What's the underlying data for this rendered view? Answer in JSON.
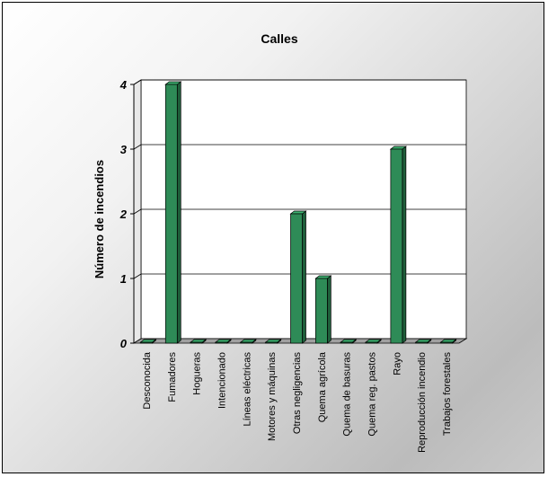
{
  "chart_data": {
    "type": "bar",
    "title": "Calles",
    "xlabel": "",
    "ylabel": "Número de incendios",
    "categories": [
      "Desconocida",
      "Fumadores",
      "Hogueras",
      "Intencionado",
      "Líneas eléctricas",
      "Motores y máquinas",
      "Otras negligencias",
      "Quema agrícola",
      "Quema de basuras",
      "Quema reg. pastos",
      "Rayo",
      "Reproducción incendio",
      "Trabajos forestales"
    ],
    "values": [
      0,
      4,
      0,
      0,
      0,
      0,
      2,
      1,
      0,
      0,
      3,
      0,
      0
    ],
    "ylim": [
      0,
      4
    ],
    "yticks": [
      "0",
      "1",
      "2",
      "3",
      "4"
    ],
    "grid": true,
    "legend": "none",
    "colors": {
      "bar_front": "#2e8b57",
      "bar_top": "#3cb371",
      "bar_side": "#1f5f3b",
      "bar_outline": "#000000",
      "wall": "#ffffff",
      "floor": "#a0a0a0"
    }
  }
}
